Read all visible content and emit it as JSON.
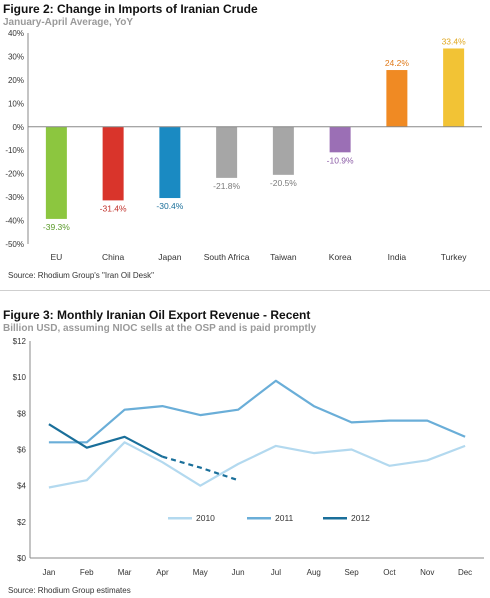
{
  "chart_data": [
    {
      "type": "bar",
      "title": "Figure 2: Change in Imports of Iranian Crude",
      "subtitle": "January-April Average, YoY",
      "categories": [
        "EU",
        "China",
        "Japan",
        "South Africa",
        "Taiwan",
        "Korea",
        "India",
        "Turkey"
      ],
      "values": [
        -39.3,
        -31.4,
        -30.4,
        -21.8,
        -20.5,
        -10.9,
        24.2,
        33.4
      ],
      "value_labels": [
        "-39.3%",
        "-31.4%",
        "-30.4%",
        "-21.8%",
        "-20.5%",
        "-10.9%",
        "24.2%",
        "33.4%"
      ],
      "colors": [
        "#8cc63f",
        "#d9342b",
        "#1a8ac2",
        "#a6a6a6",
        "#a6a6a6",
        "#9b6fb5",
        "#f08a23",
        "#f2c335"
      ],
      "label_colors": [
        "#5a9a2a",
        "#c0302a",
        "#1a6f9a",
        "#7a7a7a",
        "#7a7a7a",
        "#8a5aa5",
        "#e07a1a",
        "#e0a820"
      ],
      "ylim": [
        -50,
        40
      ],
      "yticks": [
        "40%",
        "30%",
        "20%",
        "10%",
        "0%",
        "-10%",
        "-20%",
        "-30%",
        "-40%",
        "-50%"
      ],
      "ytick_values": [
        40,
        30,
        20,
        10,
        0,
        -10,
        -20,
        -30,
        -40,
        -50
      ],
      "source": "Source: Rhodium Group's \"Iran Oil Desk\""
    },
    {
      "type": "line",
      "title": "Figure 3: Monthly Iranian Oil Export Revenue - Recent",
      "subtitle": "Billion USD, assuming NIOC sells at the OSP and is paid promptly",
      "categories": [
        "Jan",
        "Feb",
        "Mar",
        "Apr",
        "May",
        "Jun",
        "Jul",
        "Aug",
        "Sep",
        "Oct",
        "Nov",
        "Dec"
      ],
      "ylim": [
        0,
        12
      ],
      "yticks": [
        "$12",
        "$10",
        "$8",
        "$6",
        "$4",
        "$2",
        "$0"
      ],
      "ytick_values": [
        12,
        10,
        8,
        6,
        4,
        2,
        0
      ],
      "series": [
        {
          "name": "2010",
          "color": "#b3d9ef",
          "values": [
            3.9,
            4.3,
            6.4,
            5.3,
            4.0,
            5.2,
            6.2,
            5.8,
            6.0,
            5.1,
            5.4,
            6.2
          ]
        },
        {
          "name": "2011",
          "color": "#6aaed8",
          "values": [
            6.4,
            6.4,
            8.2,
            8.4,
            7.9,
            8.2,
            9.8,
            8.4,
            7.5,
            7.6,
            7.6,
            6.7
          ]
        },
        {
          "name": "2012",
          "color": "#1a6f9a",
          "values": [
            7.4,
            6.1,
            6.7,
            5.6,
            null,
            null,
            null,
            null,
            null,
            null,
            null,
            null
          ],
          "projection": [
            null,
            null,
            null,
            5.6,
            5.0,
            4.3,
            null,
            null,
            null,
            null,
            null,
            null
          ]
        }
      ],
      "legend_position": "bottom-center",
      "source": "Source: Rhodium Group estimates"
    }
  ]
}
